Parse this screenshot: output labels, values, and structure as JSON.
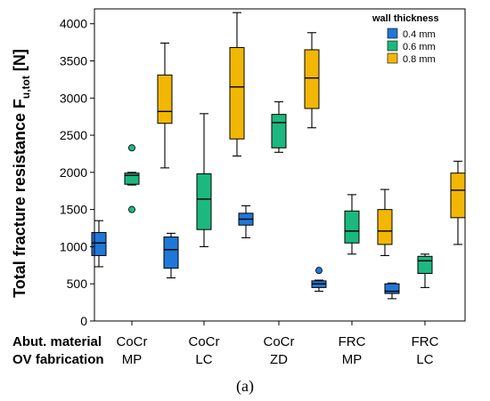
{
  "chart_data": {
    "type": "box",
    "ylabel_main": "Total fracture resistance F",
    "ylabel_sub": "u,tot",
    "ylabel_unit": " [N]",
    "ylim": [
      0,
      4200
    ],
    "yticks": [
      0,
      500,
      1000,
      1500,
      2000,
      2500,
      3000,
      3500,
      4000
    ],
    "row_labels": [
      "Abut. material",
      "OV fabrication"
    ],
    "categories": [
      {
        "line1": "CoCr",
        "line2": "MP"
      },
      {
        "line1": "CoCr",
        "line2": "LC"
      },
      {
        "line1": "CoCr",
        "line2": "ZD"
      },
      {
        "line1": "FRC",
        "line2": "MP"
      },
      {
        "line1": "FRC",
        "line2": "LC"
      }
    ],
    "legend": {
      "title": "wall thickness",
      "position": "top-right",
      "entries": [
        "0.4 mm",
        "0.6 mm",
        "0.8 mm"
      ]
    },
    "series": [
      {
        "name": "0.4 mm",
        "color": "#1f78d8",
        "boxes": [
          {
            "min": 730,
            "q1": 880,
            "median": 1050,
            "q3": 1190,
            "max": 1350,
            "outliers": []
          },
          {
            "min": 580,
            "q1": 710,
            "median": 960,
            "q3": 1130,
            "max": 1180,
            "outliers": []
          },
          {
            "min": 1120,
            "q1": 1290,
            "median": 1370,
            "q3": 1450,
            "max": 1550,
            "outliers": []
          },
          {
            "min": 400,
            "q1": 450,
            "median": 500,
            "q3": 540,
            "max": 550,
            "outliers": [
              680
            ]
          },
          {
            "min": 300,
            "q1": 370,
            "median": 400,
            "q3": 500,
            "max": 510,
            "outliers": []
          }
        ]
      },
      {
        "name": "0.6 mm",
        "color": "#1db87f",
        "boxes": [
          {
            "min": 1830,
            "q1": 1840,
            "median": 1960,
            "q3": 1990,
            "max": 2000,
            "outliers": [
              2330,
              1500
            ]
          },
          {
            "min": 1000,
            "q1": 1230,
            "median": 1640,
            "q3": 1980,
            "max": 2790,
            "outliers": []
          },
          {
            "min": 2270,
            "q1": 2330,
            "median": 2670,
            "q3": 2780,
            "max": 2950,
            "outliers": []
          },
          {
            "min": 900,
            "q1": 1050,
            "median": 1210,
            "q3": 1480,
            "max": 1700,
            "outliers": []
          },
          {
            "min": 450,
            "q1": 640,
            "median": 810,
            "q3": 870,
            "max": 900,
            "outliers": []
          }
        ]
      },
      {
        "name": "0.8 mm",
        "color": "#f2b705",
        "boxes": [
          {
            "min": 2060,
            "q1": 2660,
            "median": 2820,
            "q3": 3310,
            "max": 3740,
            "outliers": []
          },
          {
            "min": 2220,
            "q1": 2450,
            "median": 3150,
            "q3": 3680,
            "max": 4150,
            "outliers": []
          },
          {
            "min": 2600,
            "q1": 2860,
            "median": 3270,
            "q3": 3650,
            "max": 3880,
            "outliers": []
          },
          {
            "min": 880,
            "q1": 1030,
            "median": 1210,
            "q3": 1500,
            "max": 1770,
            "outliers": []
          },
          {
            "min": 1030,
            "q1": 1390,
            "median": 1760,
            "q3": 1990,
            "max": 2150,
            "outliers": []
          }
        ]
      }
    ]
  },
  "caption": "(a)"
}
